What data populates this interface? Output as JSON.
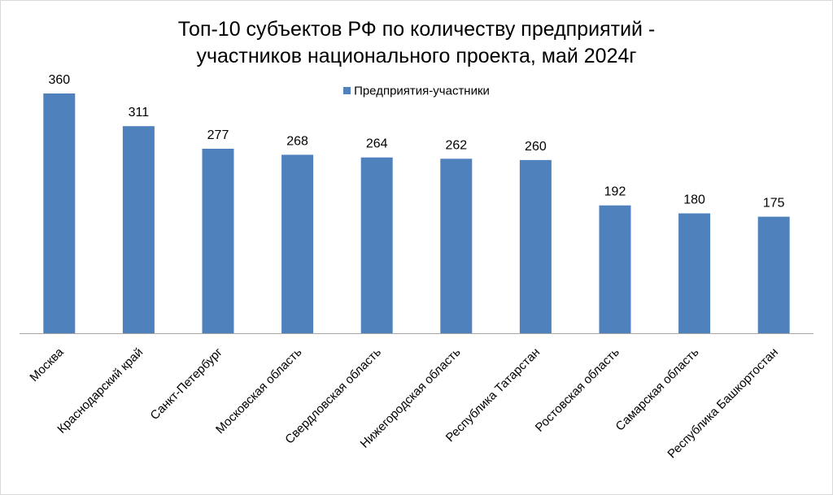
{
  "colors": {
    "bar": "#4f81bd",
    "axis": "#a6a6a6"
  },
  "chart_data": {
    "type": "bar",
    "title_lines": [
      "Топ-10 субъектов РФ по количеству предприятий -",
      "участников национального проекта, май 2024г"
    ],
    "xlabel": "",
    "ylabel": "",
    "ylim": [
      0,
      400
    ],
    "grid": false,
    "legend_position": "top",
    "categories": [
      "Москва",
      "Краснодарский край",
      "Санкт-Петербург",
      "Московская область",
      "Свердловская область",
      "Нижегородская область",
      "Республика  Татарстан",
      "Ростовская область",
      "Самарская область",
      "Республика  Башкортостан"
    ],
    "series": [
      {
        "name": "Предприятия-участники",
        "values": [
          360,
          311,
          277,
          268,
          264,
          262,
          260,
          192,
          180,
          175
        ]
      }
    ]
  }
}
